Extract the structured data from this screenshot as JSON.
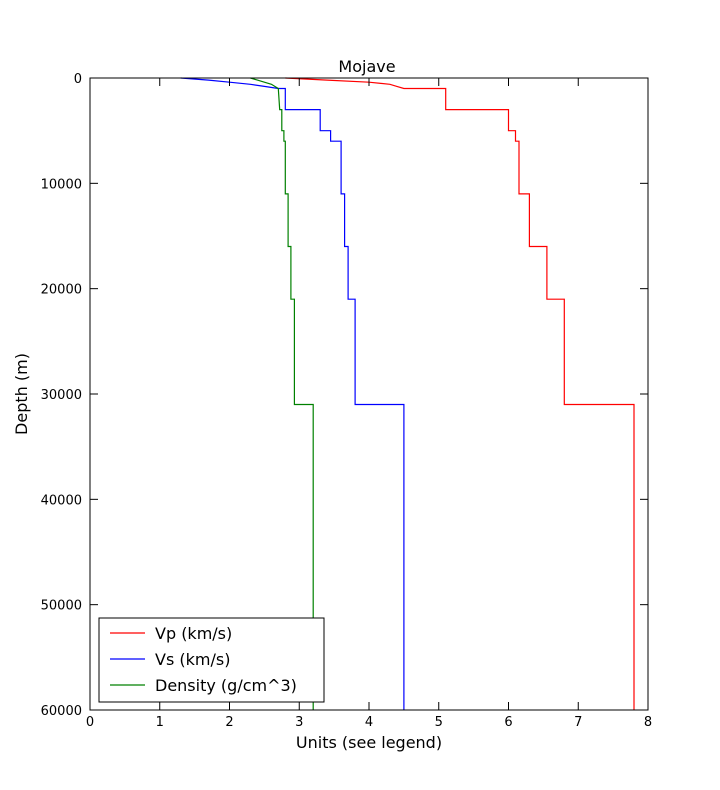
{
  "chart_data": {
    "type": "line",
    "title": "Mojave",
    "xlabel": "Units (see legend)",
    "ylabel": "Depth (m)",
    "xlim": [
      0,
      8
    ],
    "ylim": [
      0,
      60000
    ],
    "y_inverted": true,
    "x_ticks": [
      "0",
      "1",
      "2",
      "3",
      "4",
      "5",
      "6",
      "7",
      "8"
    ],
    "y_ticks": [
      "0",
      "10000",
      "20000",
      "30000",
      "40000",
      "50000",
      "60000"
    ],
    "grid": false,
    "legend_position": "lower-left",
    "series": [
      {
        "name": "Vp (km/s)",
        "color": "#ff0000",
        "step": true,
        "points": [
          [
            2.8,
            0
          ],
          [
            3.4,
            200
          ],
          [
            4.0,
            400
          ],
          [
            4.3,
            600
          ],
          [
            4.4,
            800
          ],
          [
            4.5,
            1000
          ],
          [
            5.1,
            1000
          ],
          [
            5.1,
            3000
          ],
          [
            6.0,
            3000
          ],
          [
            6.0,
            5000
          ],
          [
            6.1,
            5000
          ],
          [
            6.1,
            6000
          ],
          [
            6.15,
            6000
          ],
          [
            6.15,
            11000
          ],
          [
            6.3,
            11000
          ],
          [
            6.3,
            16000
          ],
          [
            6.55,
            16000
          ],
          [
            6.55,
            21000
          ],
          [
            6.8,
            21000
          ],
          [
            6.8,
            31000
          ],
          [
            7.8,
            31000
          ],
          [
            7.8,
            60000
          ]
        ]
      },
      {
        "name": "Vs (km/s)",
        "color": "#0000ff",
        "step": true,
        "points": [
          [
            1.3,
            0
          ],
          [
            1.7,
            200
          ],
          [
            2.0,
            400
          ],
          [
            2.3,
            600
          ],
          [
            2.5,
            800
          ],
          [
            2.7,
            1000
          ],
          [
            2.8,
            1000
          ],
          [
            2.8,
            3000
          ],
          [
            3.3,
            3000
          ],
          [
            3.3,
            5000
          ],
          [
            3.45,
            5000
          ],
          [
            3.45,
            6000
          ],
          [
            3.6,
            6000
          ],
          [
            3.6,
            11000
          ],
          [
            3.65,
            11000
          ],
          [
            3.65,
            16000
          ],
          [
            3.7,
            16000
          ],
          [
            3.7,
            21000
          ],
          [
            3.8,
            21000
          ],
          [
            3.8,
            31000
          ],
          [
            4.5,
            31000
          ],
          [
            4.5,
            60000
          ]
        ]
      },
      {
        "name": "Density (g/cm^3)",
        "color": "#008000",
        "step": true,
        "points": [
          [
            2.3,
            0
          ],
          [
            2.4,
            200
          ],
          [
            2.5,
            400
          ],
          [
            2.6,
            600
          ],
          [
            2.65,
            800
          ],
          [
            2.7,
            1000
          ],
          [
            2.72,
            3000
          ],
          [
            2.75,
            3000
          ],
          [
            2.75,
            5000
          ],
          [
            2.78,
            5000
          ],
          [
            2.78,
            6000
          ],
          [
            2.8,
            6000
          ],
          [
            2.8,
            11000
          ],
          [
            2.84,
            11000
          ],
          [
            2.84,
            16000
          ],
          [
            2.88,
            16000
          ],
          [
            2.88,
            21000
          ],
          [
            2.93,
            21000
          ],
          [
            2.93,
            31000
          ],
          [
            3.2,
            31000
          ],
          [
            3.2,
            60000
          ]
        ]
      }
    ]
  }
}
